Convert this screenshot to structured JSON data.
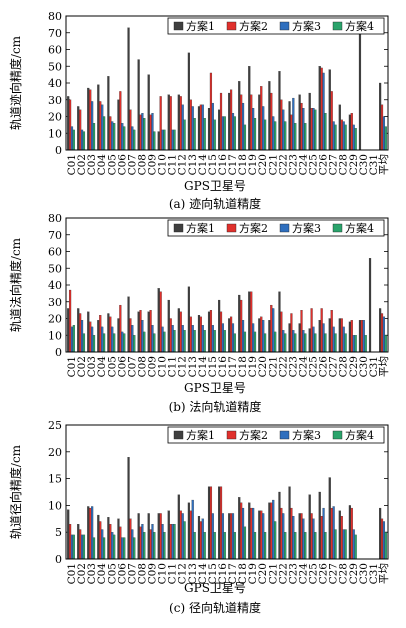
{
  "series_colors": [
    "#3f3f3f",
    "#e0302c",
    "#2f6fbe",
    "#2aa36b"
  ],
  "chart_data": [
    {
      "type": "bar",
      "title": "",
      "xlabel": "GPS卫星号",
      "ylabel": "轨道迹向精度/cm",
      "caption": "(a) 迹向轨道精度",
      "ylim": [
        0,
        80
      ],
      "yticks": [
        "0",
        "10",
        "20",
        "30",
        "40",
        "50",
        "60",
        "70",
        "80"
      ],
      "legend_position": "top-right",
      "categories": [
        "C01",
        "C02",
        "C03",
        "C04",
        "C05",
        "C06",
        "C07",
        "C08",
        "C09",
        "C10",
        "C11",
        "C12",
        "C13",
        "C14",
        "C15",
        "C16",
        "C17",
        "C18",
        "C19",
        "C20",
        "C21",
        "C22",
        "C23",
        "C24",
        "C25",
        "C26",
        "C27",
        "C28",
        "C29",
        "C30",
        "C31",
        "平均"
      ],
      "series": [
        {
          "name": "方案1",
          "values": [
            32,
            26,
            37,
            39,
            44,
            30,
            73,
            54,
            45,
            11,
            33,
            33,
            58,
            26,
            25,
            24,
            34,
            41,
            50,
            33,
            41,
            47,
            29,
            33,
            34,
            50,
            48,
            27,
            21,
            72,
            0,
            40
          ]
        },
        {
          "name": "方案2",
          "values": [
            30,
            24,
            36,
            29,
            20,
            35,
            24,
            21,
            21,
            32,
            32,
            32,
            30,
            27,
            46,
            34,
            36,
            33,
            33,
            38,
            34,
            30,
            21,
            28,
            25,
            49,
            35,
            18,
            22,
            0,
            0,
            27
          ]
        },
        {
          "name": "方案3",
          "values": [
            14,
            12,
            29,
            27,
            17,
            16,
            14,
            22,
            22,
            12,
            12,
            27,
            26,
            27,
            28,
            20,
            22,
            28,
            25,
            26,
            20,
            24,
            31,
            25,
            25,
            46,
            17,
            17,
            15,
            0,
            0,
            20
          ]
        },
        {
          "name": "方案4",
          "values": [
            12,
            11,
            16,
            20,
            16,
            14,
            12,
            19,
            11,
            12,
            12,
            18,
            19,
            19,
            18,
            20,
            20,
            15,
            19,
            18,
            17,
            17,
            16,
            16,
            24,
            22,
            15,
            15,
            13,
            0,
            0,
            14
          ]
        }
      ]
    },
    {
      "type": "bar",
      "title": "",
      "xlabel": "GPS卫星号",
      "ylabel": "轨道法向精度/cm",
      "caption": "(b) 法向轨道精度",
      "ylim": [
        0,
        80
      ],
      "yticks": [
        "0",
        "10",
        "20",
        "30",
        "40",
        "50",
        "60",
        "70",
        "80"
      ],
      "legend_position": "top-right",
      "categories": [
        "C01",
        "C02",
        "C03",
        "C04",
        "C05",
        "C06",
        "C07",
        "C08",
        "C09",
        "C10",
        "C11",
        "C12",
        "C13",
        "C14",
        "C15",
        "C16",
        "C17",
        "C18",
        "C19",
        "C20",
        "C21",
        "C22",
        "C23",
        "C24",
        "C25",
        "C26",
        "C27",
        "C28",
        "C29",
        "C30",
        "C31",
        "平均"
      ],
      "series": [
        {
          "name": "方案1",
          "values": [
            26,
            26,
            24,
            19,
            23,
            20,
            33,
            24,
            24,
            38,
            31,
            26,
            39,
            22,
            24,
            31,
            20,
            34,
            36,
            20,
            19,
            36,
            17,
            17,
            14,
            19,
            20,
            20,
            18,
            19,
            56,
            26
          ]
        },
        {
          "name": "方案2",
          "values": [
            37,
            23,
            18,
            22,
            21,
            28,
            20,
            25,
            25,
            36,
            20,
            24,
            21,
            21,
            25,
            24,
            21,
            31,
            36,
            21,
            28,
            24,
            23,
            25,
            26,
            26,
            25,
            20,
            19,
            19,
            0,
            23
          ]
        },
        {
          "name": "方案3",
          "values": [
            15,
            19,
            15,
            15,
            15,
            12,
            16,
            19,
            16,
            15,
            16,
            16,
            16,
            16,
            16,
            17,
            17,
            19,
            17,
            19,
            26,
            13,
            13,
            13,
            15,
            17,
            15,
            15,
            10,
            19,
            0,
            21
          ]
        },
        {
          "name": "方案4",
          "values": [
            16,
            11,
            10,
            11,
            11,
            11,
            10,
            12,
            11,
            12,
            13,
            13,
            13,
            13,
            13,
            13,
            11,
            12,
            12,
            11,
            12,
            11,
            11,
            11,
            11,
            11,
            11,
            11,
            10,
            10,
            0,
            10
          ]
        }
      ]
    },
    {
      "type": "bar",
      "title": "",
      "xlabel": "GPS卫星号",
      "ylabel": "轨道径向精度/cm",
      "caption": "(c) 径向轨道精度",
      "ylim": [
        0,
        25
      ],
      "yticks": [
        "0",
        "5",
        "10",
        "15",
        "20",
        "25"
      ],
      "legend_position": "top-right",
      "categories": [
        "C01",
        "C02",
        "C03",
        "C04",
        "C05",
        "C06",
        "C07",
        "C08",
        "C09",
        "C10",
        "C11",
        "C12",
        "C13",
        "C14",
        "C15",
        "C16",
        "C17",
        "C18",
        "C19",
        "C20",
        "C21",
        "C22",
        "C23",
        "C24",
        "C25",
        "C26",
        "C27",
        "C28",
        "C29",
        "C30",
        "C31",
        "平均"
      ],
      "series": [
        {
          "name": "方案1",
          "values": [
            9.2,
            6.5,
            9.8,
            8.2,
            7.8,
            7.5,
            19.0,
            8.5,
            8.5,
            8.5,
            9.0,
            12.0,
            10.5,
            8.0,
            13.5,
            13.5,
            8.5,
            11.5,
            10.5,
            9.0,
            10.5,
            12.5,
            13.5,
            8.5,
            12.0,
            12.5,
            15.2,
            9.0,
            10.0,
            0,
            0,
            9.5
          ]
        },
        {
          "name": "方案2",
          "values": [
            6.5,
            5.5,
            9.5,
            7.0,
            6.5,
            6.0,
            7.5,
            6.0,
            5.5,
            8.5,
            6.5,
            9.0,
            9.0,
            7.0,
            13.5,
            13.5,
            8.5,
            10.5,
            9.5,
            9.0,
            10.5,
            9.5,
            9.5,
            8.5,
            8.5,
            8.0,
            9.5,
            8.0,
            9.5,
            0,
            0,
            7.5
          ]
        },
        {
          "name": "方案3",
          "values": [
            4.5,
            4.5,
            9.8,
            5.5,
            5.0,
            4.0,
            5.5,
            6.5,
            6.5,
            6.5,
            6.5,
            8.5,
            11.0,
            7.5,
            8.5,
            8.5,
            8.5,
            9.5,
            9.5,
            8.5,
            11.0,
            8.5,
            8.0,
            7.5,
            7.5,
            9.5,
            9.8,
            5.5,
            5.5,
            0,
            0,
            7.0
          ]
        },
        {
          "name": "方案4",
          "values": [
            4.5,
            4.5,
            4.0,
            4.0,
            4.5,
            4.0,
            4.0,
            5.0,
            5.0,
            5.0,
            6.5,
            7.0,
            5.0,
            5.0,
            5.0,
            5.0,
            5.0,
            6.0,
            5.0,
            5.0,
            7.0,
            5.0,
            5.0,
            5.0,
            5.0,
            5.0,
            5.5,
            5.5,
            4.5,
            0,
            0,
            5.0
          ]
        }
      ]
    }
  ]
}
